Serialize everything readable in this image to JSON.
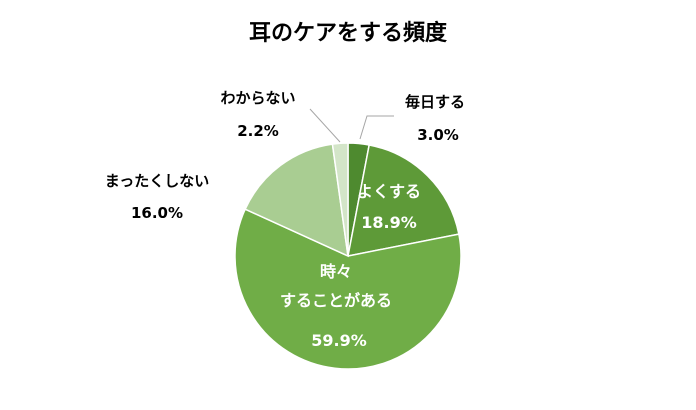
{
  "chart_data": {
    "type": "pie",
    "title": "耳のケアをする頻度",
    "slices": [
      {
        "label": "毎日する",
        "value": 3.0,
        "value_label": "3.0%",
        "color": "#4e8a2f",
        "label_position": "outside"
      },
      {
        "label": "よくする",
        "value": 18.9,
        "value_label": "18.9%",
        "color": "#5e9a38",
        "label_position": "inside"
      },
      {
        "label_lines": [
          "時々",
          "することがある"
        ],
        "value": 59.9,
        "value_label": "59.9%",
        "color": "#70ad47",
        "label_position": "inside"
      },
      {
        "label": "まったくしない",
        "value": 16.0,
        "value_label": "16.0%",
        "color": "#a9cd92",
        "label_position": "outside"
      },
      {
        "label": "わからない",
        "value": 2.2,
        "value_label": "2.2%",
        "color": "#d3e5c8",
        "label_position": "outside"
      }
    ],
    "start": "12 o'clock",
    "direction": "clockwise",
    "legend": "none"
  }
}
